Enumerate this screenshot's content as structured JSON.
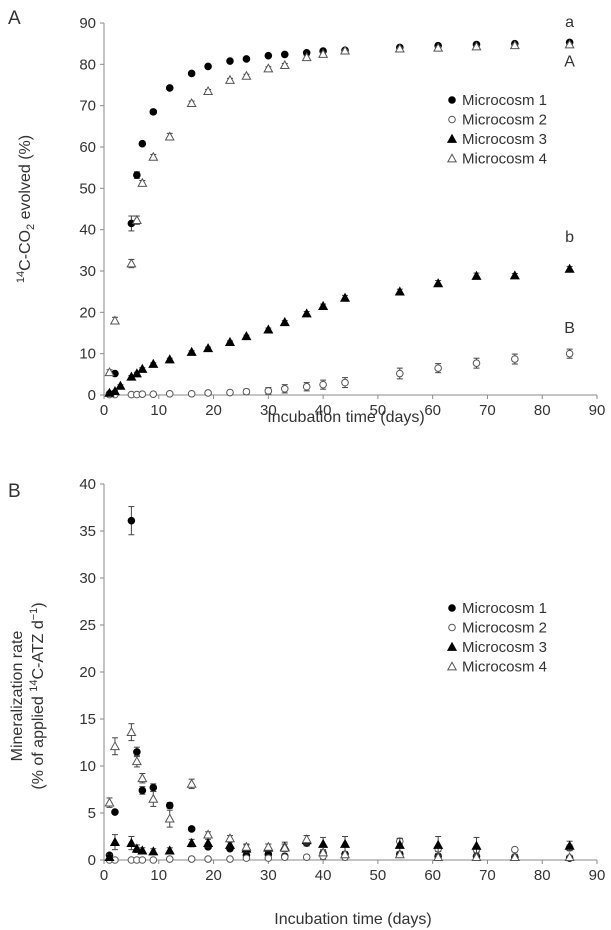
{
  "chart_data": [
    {
      "panel": "A",
      "type": "scatter",
      "xlabel": "Incubation time (days)",
      "ylabel_parts": [
        "14",
        "C-CO",
        "2",
        " evolved (%)"
      ],
      "xlim": [
        0,
        90
      ],
      "ylim": [
        0,
        90
      ],
      "xticks": [
        "0",
        "10",
        "20",
        "30",
        "40",
        "50",
        "60",
        "70",
        "80",
        "90"
      ],
      "yticks": [
        "0",
        "10",
        "20",
        "30",
        "40",
        "50",
        "60",
        "70",
        "80",
        "90"
      ],
      "grid": false,
      "legend_position": "right, middle-upper",
      "annotations": [
        {
          "text": "a",
          "x": 85,
          "y": 89
        },
        {
          "text": "A",
          "x": 85,
          "y": 79.5
        },
        {
          "text": "b",
          "x": 85,
          "y": 37
        },
        {
          "text": "B",
          "x": 85,
          "y": 15
        }
      ],
      "series": [
        {
          "name": "Microcosm 1",
          "marker": "filled-circle",
          "x": [
            1,
            2,
            5,
            6,
            7,
            9,
            12,
            16,
            19,
            23,
            26,
            30,
            33,
            37,
            40,
            44,
            54,
            61,
            68,
            75,
            85
          ],
          "y": [
            0.3,
            5.2,
            41.5,
            53.2,
            60.8,
            68.5,
            74.3,
            77.8,
            79.5,
            80.8,
            81.3,
            82.1,
            82.4,
            82.8,
            83.2,
            83.4,
            84.1,
            84.5,
            84.8,
            85.0,
            85.3
          ],
          "err": [
            0.3,
            0.3,
            1.8,
            0.8,
            0.5,
            0.5,
            0.4,
            0.4,
            0.4,
            0.3,
            0.3,
            0.3,
            0.3,
            0.3,
            0.3,
            0.3,
            0.3,
            0.3,
            0.3,
            0.3,
            0.4
          ]
        },
        {
          "name": "Microcosm 2",
          "marker": "open-circle",
          "x": [
            1,
            2,
            5,
            6,
            7,
            9,
            12,
            16,
            19,
            23,
            26,
            30,
            33,
            37,
            40,
            44,
            54,
            61,
            68,
            75,
            85
          ],
          "y": [
            0.1,
            0.1,
            0.1,
            0.1,
            0.2,
            0.2,
            0.3,
            0.3,
            0.5,
            0.6,
            0.8,
            1.0,
            1.5,
            2.0,
            2.5,
            3.0,
            5.2,
            6.5,
            7.7,
            8.7,
            10.0
          ],
          "err": [
            0.1,
            0.1,
            0.1,
            0.1,
            0.1,
            0.1,
            0.2,
            0.3,
            0.4,
            0.5,
            0.6,
            0.8,
            1.0,
            1.0,
            1.1,
            1.2,
            1.3,
            1.1,
            1.2,
            1.2,
            1.1
          ]
        },
        {
          "name": "Microcosm 3",
          "marker": "filled-triangle",
          "x": [
            1,
            2,
            3,
            5,
            6,
            7,
            9,
            12,
            16,
            19,
            23,
            26,
            30,
            33,
            37,
            40,
            44,
            54,
            61,
            68,
            75,
            85
          ],
          "y": [
            0.5,
            0.9,
            2.2,
            4.4,
            5.2,
            6.3,
            7.5,
            8.6,
            10.4,
            11.3,
            12.8,
            14.2,
            15.8,
            17.6,
            19.7,
            21.5,
            23.5,
            25.0,
            27.0,
            28.8,
            28.9,
            30.5
          ],
          "err": [
            0.2,
            0.2,
            0.3,
            0.3,
            0.3,
            0.3,
            0.3,
            0.3,
            0.3,
            0.3,
            0.3,
            0.3,
            0.4,
            0.4,
            0.5,
            0.5,
            0.6,
            0.6,
            0.7,
            0.7,
            0.5,
            0.6
          ]
        },
        {
          "name": "Microcosm 4",
          "marker": "open-triangle",
          "x": [
            1,
            2,
            5,
            6,
            7,
            9,
            12,
            16,
            19,
            23,
            26,
            30,
            33,
            37,
            40,
            44,
            54,
            61,
            68,
            75,
            85
          ],
          "y": [
            5.5,
            18.0,
            31.8,
            42.3,
            51.3,
            57.6,
            62.5,
            70.6,
            73.5,
            76.2,
            77.2,
            79.0,
            79.8,
            81.7,
            82.5,
            83.3,
            83.8,
            84.0,
            84.3,
            84.6,
            84.8
          ],
          "err": [
            0.6,
            0.8,
            1.0,
            1.0,
            0.6,
            0.6,
            0.8,
            0.5,
            0.4,
            0.4,
            0.4,
            0.4,
            0.4,
            0.4,
            0.4,
            0.3,
            0.3,
            0.3,
            0.3,
            0.3,
            0.3
          ]
        }
      ]
    },
    {
      "panel": "B",
      "type": "scatter",
      "xlabel": "Incubation time (days)",
      "ylabel_line1": "Mineralization rate",
      "ylabel_parts": [
        "(% of applied ",
        "14",
        "C-ATZ d",
        "−1",
        ")"
      ],
      "xlim": [
        0,
        90
      ],
      "ylim": [
        0,
        40
      ],
      "xticks": [
        "0",
        "10",
        "20",
        "30",
        "40",
        "50",
        "60",
        "70",
        "80",
        "90"
      ],
      "yticks": [
        "0",
        "5",
        "10",
        "15",
        "20",
        "25",
        "30",
        "35",
        "40"
      ],
      "grid": false,
      "legend_position": "right, middle",
      "series": [
        {
          "name": "Microcosm 1",
          "marker": "filled-circle",
          "x": [
            1,
            2,
            5,
            6,
            7,
            9,
            12,
            16,
            19,
            23,
            26,
            30,
            33,
            37,
            40,
            44,
            54,
            61,
            68,
            75,
            85
          ],
          "y": [
            0.5,
            5.1,
            36.1,
            11.5,
            7.4,
            7.7,
            5.8,
            3.3,
            1.4,
            1.2,
            0.5,
            0.6,
            0.4,
            1.8,
            0.7,
            0.6,
            0.6,
            0.4,
            0.4,
            0.3,
            0.2
          ],
          "err": [
            0.2,
            0.2,
            1.5,
            0.5,
            0.4,
            0.4,
            0.3,
            0.2,
            0.2,
            0.2,
            0.2,
            0.2,
            0.2,
            0.3,
            0.2,
            0.2,
            0.2,
            0.2,
            0.2,
            0.1,
            0.1
          ]
        },
        {
          "name": "Microcosm 2",
          "marker": "open-circle",
          "x": [
            1,
            2,
            5,
            6,
            7,
            9,
            12,
            16,
            19,
            23,
            26,
            30,
            33,
            37,
            40,
            44,
            54,
            61,
            68,
            75,
            85
          ],
          "y": [
            0.0,
            0.0,
            0.0,
            0.0,
            0.0,
            0.0,
            0.1,
            0.1,
            0.1,
            0.1,
            0.2,
            0.2,
            0.3,
            0.3,
            0.4,
            0.3,
            2.0,
            1.2,
            1.1,
            1.1,
            1.3
          ],
          "err": [
            0.1,
            0.1,
            0.1,
            0.1,
            0.1,
            0.1,
            0.1,
            0.1,
            0.1,
            0.1,
            0.1,
            0.1,
            0.2,
            0.2,
            0.3,
            0.3,
            0.3,
            0.3,
            0.3,
            0.2,
            0.3
          ]
        },
        {
          "name": "Microcosm 3",
          "marker": "filled-triangle",
          "x": [
            1,
            2,
            5,
            6,
            7,
            9,
            12,
            16,
            19,
            23,
            26,
            30,
            33,
            37,
            40,
            44,
            54,
            61,
            68,
            75,
            85
          ],
          "y": [
            0.3,
            1.9,
            1.8,
            1.2,
            1.0,
            0.9,
            1.0,
            1.8,
            1.8,
            1.6,
            1.2,
            1.3,
            1.4,
            2.1,
            1.7,
            1.7,
            1.6,
            1.6,
            1.5,
            0.3,
            1.5
          ],
          "err": [
            0.3,
            0.8,
            0.7,
            0.4,
            0.3,
            0.3,
            0.3,
            0.4,
            0.4,
            0.3,
            0.4,
            0.4,
            0.5,
            0.5,
            0.7,
            0.8,
            0.7,
            0.9,
            0.9,
            0.3,
            0.5
          ]
        },
        {
          "name": "Microcosm 4",
          "marker": "open-triangle",
          "x": [
            1,
            2,
            5,
            6,
            7,
            9,
            12,
            16,
            19,
            23,
            26,
            30,
            33,
            37,
            40,
            44,
            54,
            61,
            68,
            75,
            85
          ],
          "y": [
            6.1,
            12.1,
            13.6,
            10.5,
            8.7,
            6.5,
            4.4,
            8.1,
            2.7,
            2.3,
            1.4,
            1.4,
            1.3,
            2.2,
            0.8,
            0.6,
            0.6,
            0.3,
            0.3,
            0.3,
            0.3
          ],
          "err": [
            0.5,
            0.9,
            0.9,
            0.6,
            0.5,
            0.8,
            0.9,
            0.5,
            0.3,
            0.3,
            0.3,
            0.3,
            0.4,
            0.4,
            0.3,
            0.3,
            0.3,
            0.2,
            0.2,
            0.2,
            0.2
          ]
        }
      ]
    }
  ]
}
